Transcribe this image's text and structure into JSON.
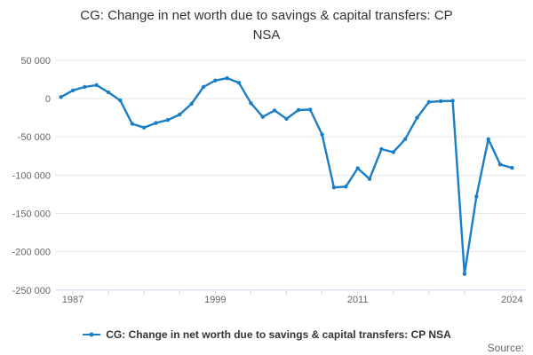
{
  "title": "CG: Change in net worth due to savings & capital transfers: CP NSA",
  "source_label": "Source:",
  "legend": {
    "label": "CG: Change in net worth due to savings & capital transfers: CP NSA"
  },
  "colors": {
    "line": "#1b7ec6",
    "grid": "#e6e6e6",
    "axis": "#ccd6eb",
    "text_dark": "#333333",
    "text_muted": "#666666"
  },
  "chart_data": {
    "type": "line",
    "title": "CG: Change in net worth due to savings & capital transfers: CP NSA",
    "xlabel": "",
    "ylabel": "",
    "grid": true,
    "legend_position": "bottom",
    "ylim": [
      -250000,
      50000
    ],
    "x": [
      1986,
      1987,
      1988,
      1989,
      1990,
      1991,
      1992,
      1993,
      1994,
      1995,
      1996,
      1997,
      1998,
      1999,
      2000,
      2001,
      2002,
      2003,
      2004,
      2005,
      2006,
      2007,
      2008,
      2009,
      2010,
      2011,
      2012,
      2013,
      2014,
      2015,
      2016,
      2017,
      2018,
      2019,
      2020,
      2021,
      2022,
      2023,
      2024
    ],
    "series": [
      {
        "name": "CG: Change in net worth due to savings & capital transfers: CP NSA",
        "values": [
          2000,
          10500,
          15000,
          17500,
          8000,
          -2500,
          -33000,
          -38000,
          -32000,
          -28000,
          -21000,
          -7000,
          15000,
          23500,
          26500,
          20500,
          -6000,
          -24000,
          -15500,
          -26500,
          -15000,
          -14500,
          -47000,
          -116000,
          -115000,
          -91000,
          -105000,
          -66000,
          -70000,
          -53000,
          -25000,
          -4500,
          -3500,
          -3000,
          -229000,
          -128000,
          -53000,
          -86000,
          -90500
        ]
      }
    ],
    "yticks": [
      {
        "value": 50000,
        "label": "50 000"
      },
      {
        "value": 0,
        "label": "0"
      },
      {
        "value": -50000,
        "label": "-50 000"
      },
      {
        "value": -100000,
        "label": "-100 000"
      },
      {
        "value": -150000,
        "label": "-150 000"
      },
      {
        "value": -200000,
        "label": "-200 000"
      },
      {
        "value": -250000,
        "label": "-250 000"
      }
    ],
    "xticks_minor_years": [
      1987,
      1990,
      1993,
      1996,
      1999,
      2002,
      2005,
      2008,
      2011,
      2014,
      2017,
      2020,
      2024
    ],
    "xticks_labeled": [
      {
        "year": 1987,
        "label": "1987"
      },
      {
        "year": 1999,
        "label": "1999"
      },
      {
        "year": 2011,
        "label": "2011"
      },
      {
        "year": 2024,
        "label": "2024"
      }
    ]
  }
}
